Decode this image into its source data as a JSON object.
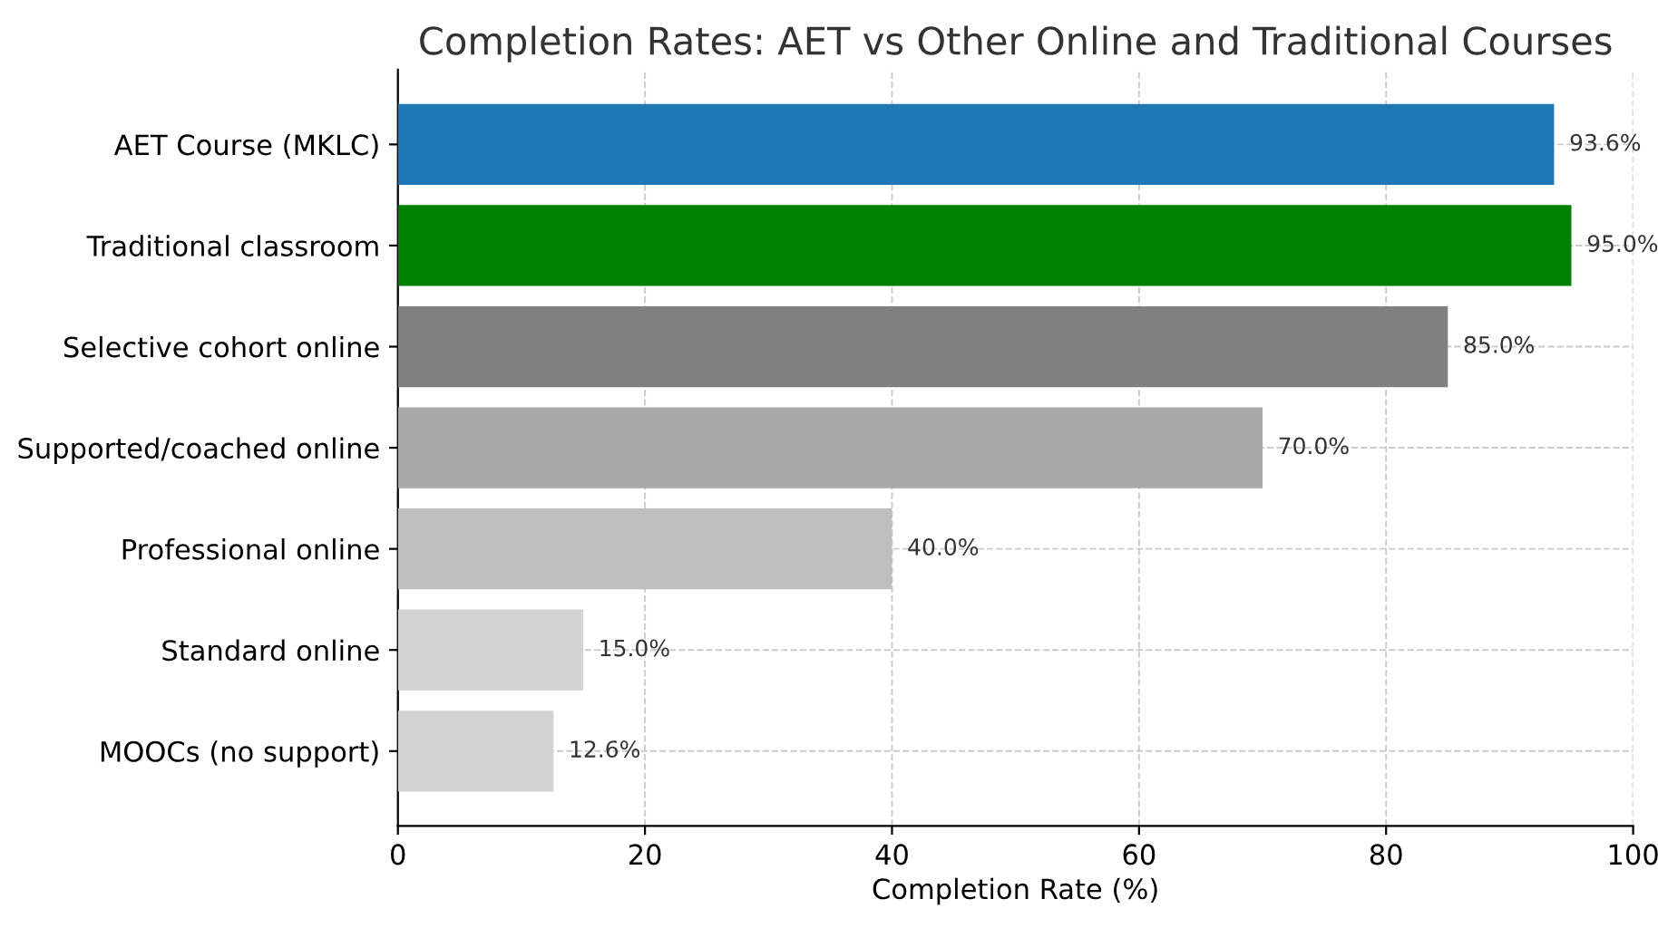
{
  "chart_data": {
    "type": "bar",
    "orientation": "horizontal",
    "title": "Completion Rates: AET vs Other Online and Traditional Courses",
    "xlabel": "Completion Rate (%)",
    "categories": [
      "AET Course (MKLC)",
      "Traditional classroom",
      "Selective cohort online",
      "Supported/coached online",
      "Professional online",
      "Standard online",
      "MOOCs (no support)"
    ],
    "values": [
      93.6,
      95.0,
      85.0,
      70.0,
      40.0,
      15.0,
      12.6
    ],
    "colors": [
      "#1f77b4",
      "#008000",
      "#808080",
      "#a9a9a9",
      "#bfbfbf",
      "#d3d3d3",
      "#d3d3d3"
    ],
    "value_labels": [
      "93.6%",
      "95.0%",
      "85.0%",
      "70.0%",
      "40.0%",
      "15.0%",
      "12.6%"
    ],
    "xlim": [
      0,
      100
    ],
    "xticks": [
      0,
      20,
      40,
      60,
      80,
      100
    ],
    "grid": true
  }
}
